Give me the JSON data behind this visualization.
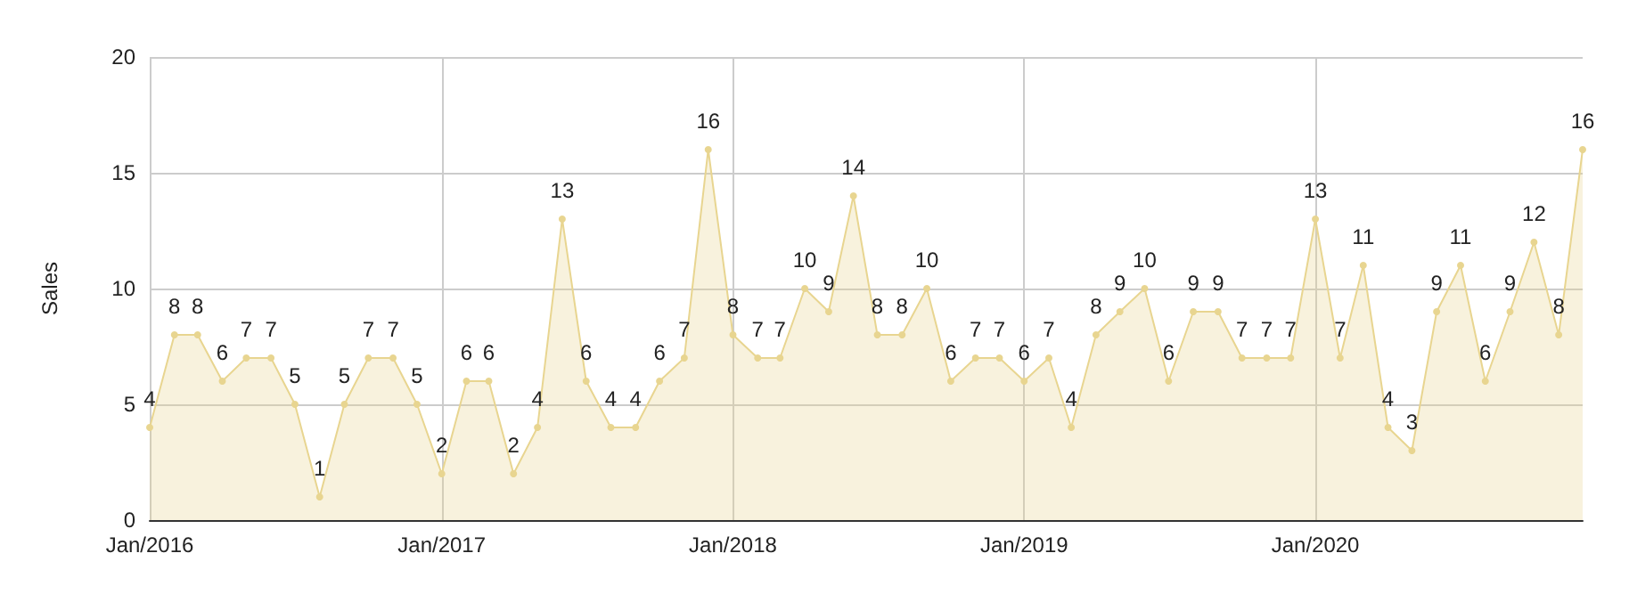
{
  "chart_data": {
    "type": "area",
    "ylabel": "Sales",
    "x": [
      "2016-01",
      "2016-02",
      "2016-03",
      "2016-04",
      "2016-05",
      "2016-06",
      "2016-07",
      "2016-08",
      "2016-09",
      "2016-10",
      "2016-11",
      "2016-12",
      "2017-01",
      "2017-02",
      "2017-03",
      "2017-04",
      "2017-05",
      "2017-06",
      "2017-07",
      "2017-08",
      "2017-09",
      "2017-10",
      "2017-11",
      "2017-12",
      "2018-01",
      "2018-02",
      "2018-03",
      "2018-04",
      "2018-05",
      "2018-06",
      "2018-07",
      "2018-08",
      "2018-09",
      "2018-10",
      "2018-11",
      "2018-12",
      "2019-01",
      "2019-02",
      "2019-03",
      "2019-04",
      "2019-05",
      "2019-06",
      "2019-07",
      "2019-08",
      "2019-09",
      "2019-10",
      "2019-11",
      "2019-12",
      "2020-01",
      "2020-02",
      "2020-03",
      "2020-04",
      "2020-05",
      "2020-06",
      "2020-07",
      "2020-08",
      "2020-09",
      "2020-10",
      "2020-11",
      "2020-12"
    ],
    "series": [
      {
        "color": "#e8d590",
        "values": [
          4,
          8,
          8,
          6,
          7,
          7,
          5,
          1,
          5,
          7,
          7,
          5,
          2,
          6,
          6,
          2,
          4,
          13,
          6,
          4,
          4,
          6,
          7,
          16,
          8,
          7,
          7,
          10,
          9,
          14,
          8,
          8,
          10,
          6,
          7,
          7,
          6,
          7,
          4,
          8,
          9,
          10,
          6,
          9,
          9,
          7,
          7,
          7,
          13,
          7,
          11,
          4,
          3,
          9,
          11,
          6,
          9,
          12,
          8,
          16
        ]
      }
    ],
    "xlim": [
      "2016-01",
      "2020-12"
    ],
    "xticks": [
      {
        "value": "2016-01",
        "label": "Jan/2016"
      },
      {
        "value": "2017-01",
        "label": "Jan/2017"
      },
      {
        "value": "2018-01",
        "label": "Jan/2018"
      },
      {
        "value": "2019-01",
        "label": "Jan/2019"
      },
      {
        "value": "2020-01",
        "label": "Jan/2020"
      }
    ],
    "ylim": [
      0,
      20
    ],
    "yticks": [
      0,
      5,
      10,
      15,
      20
    ],
    "grid": true,
    "data_labels": true,
    "marker": "circle",
    "line_style": "solid"
  }
}
